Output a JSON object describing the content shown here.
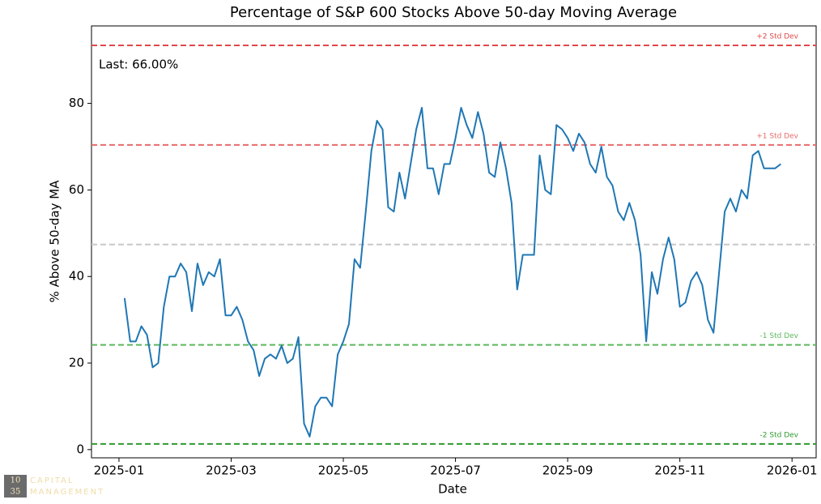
{
  "chart_data": {
    "type": "line",
    "title": "Percentage of S&P 600 Stocks Above 50-day Moving Average",
    "xlabel": "Date",
    "ylabel": "% Above 50-day MA",
    "annotation": "Last: 66.00%",
    "xlim": [
      -0.49,
      12.43
    ],
    "xticks": [
      {
        "value": 0,
        "label": "2025-01"
      },
      {
        "value": 2,
        "label": "2025-03"
      },
      {
        "value": 4,
        "label": "2025-05"
      },
      {
        "value": 6,
        "label": "2025-07"
      },
      {
        "value": 8,
        "label": "2025-09"
      },
      {
        "value": 10,
        "label": "2025-11"
      },
      {
        "value": 12,
        "label": "2026-01"
      }
    ],
    "ylim": [
      -1.9,
      97.9
    ],
    "yticks": [
      0,
      20,
      40,
      60,
      80
    ],
    "reference_lines": [
      {
        "value": 93.4,
        "label": "+2 Std Dev",
        "color": "#e04848"
      },
      {
        "value": 70.4,
        "label": "+1 Std Dev",
        "color": "#e86a6a"
      },
      {
        "value": 47.4,
        "color": "#c8c8c8"
      },
      {
        "value": 24.2,
        "label": "-1 Std Dev",
        "color": "#5cb85c"
      },
      {
        "value": 1.3,
        "label": "-2 Std Dev",
        "color": "#2e9a2e"
      }
    ],
    "series": [
      {
        "color": "#1f77b4",
        "x": [
          0.1,
          0.2,
          0.3,
          0.4,
          0.5,
          0.6,
          0.7,
          0.8,
          0.9,
          1.0,
          1.1,
          1.2,
          1.3,
          1.4,
          1.5,
          1.6,
          1.7,
          1.8,
          1.9,
          2.0,
          2.1,
          2.2,
          2.3,
          2.4,
          2.5,
          2.6,
          2.7,
          2.8,
          2.9,
          3.0,
          3.1,
          3.2,
          3.3,
          3.4,
          3.5,
          3.6,
          3.7,
          3.8,
          3.9,
          4.0,
          4.1,
          4.2,
          4.3,
          4.4,
          4.5,
          4.6,
          4.7,
          4.8,
          4.9,
          5.0,
          5.1,
          5.2,
          5.3,
          5.4,
          5.5,
          5.6,
          5.7,
          5.8,
          5.9,
          6.0,
          6.1,
          6.2,
          6.3,
          6.4,
          6.5,
          6.6,
          6.7,
          6.8,
          6.9,
          7.0,
          7.1,
          7.2,
          7.3,
          7.4,
          7.5,
          7.6,
          7.7,
          7.8,
          7.9,
          8.0,
          8.1,
          8.2,
          8.3,
          8.4,
          8.5,
          8.6,
          8.7,
          8.8,
          8.9,
          9.0,
          9.1,
          9.2,
          9.3,
          9.4,
          9.5,
          9.6,
          9.7,
          9.8,
          9.9,
          10.0,
          10.1,
          10.2,
          10.3,
          10.4,
          10.5,
          10.6,
          10.7,
          10.8,
          10.9,
          11.0,
          11.1,
          11.2,
          11.3,
          11.4,
          11.5,
          11.6,
          11.7,
          11.8
        ],
        "values": [
          35,
          25,
          25,
          28.5,
          26.5,
          19,
          20,
          33,
          40,
          40,
          43,
          41,
          32,
          43,
          38,
          41,
          40,
          44,
          31,
          31,
          33,
          30,
          25,
          23,
          17,
          21,
          22,
          21,
          24,
          20,
          21,
          26,
          6,
          3,
          10,
          12,
          12,
          10,
          22,
          25,
          29,
          44,
          42,
          55,
          69,
          76,
          74,
          56,
          55,
          64,
          58,
          66,
          74,
          79,
          65,
          65,
          59,
          66,
          66,
          72,
          79,
          75,
          72,
          78,
          73,
          64,
          63,
          71,
          65,
          57,
          37,
          45,
          45,
          45,
          68,
          60,
          59,
          75,
          74,
          72,
          69,
          73,
          71,
          66,
          64,
          70,
          63,
          61,
          55,
          53,
          57,
          53,
          45,
          25,
          41,
          36,
          44,
          49,
          44,
          33,
          34,
          39,
          41,
          38,
          30,
          27,
          41,
          55,
          58,
          55,
          60,
          58,
          68,
          69,
          65,
          65,
          65,
          66
        ]
      }
    ],
    "watermark": {
      "top": "10",
      "bottom": "35",
      "line1": "CAPITAL",
      "line2": "MANAGEMENT"
    }
  }
}
